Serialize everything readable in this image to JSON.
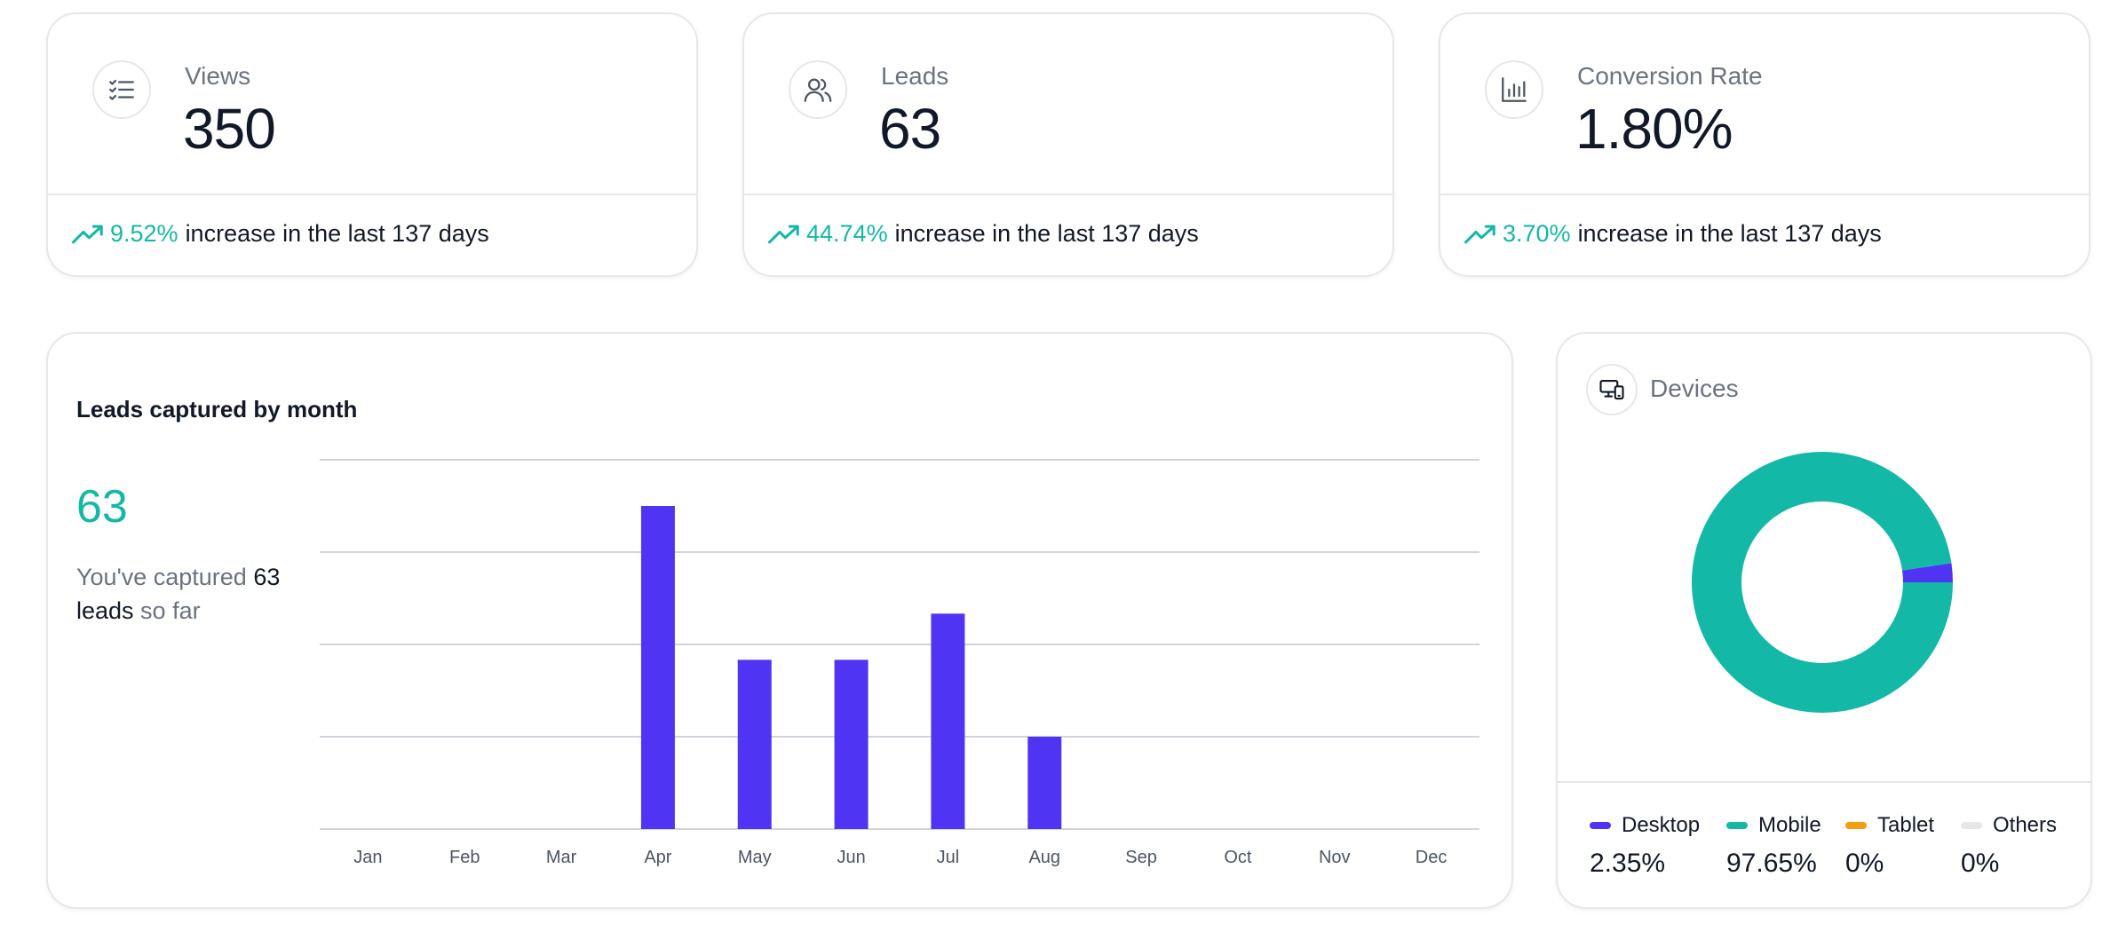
{
  "stats": [
    {
      "label": "Views",
      "value": "350",
      "change": "9.52%",
      "suffix": "increase in the last 137 days",
      "icon": "checklist-icon"
    },
    {
      "label": "Leads",
      "value": "63",
      "change": "44.74%",
      "suffix": "increase in the last 137 days",
      "icon": "users-icon"
    },
    {
      "label": "Conversion Rate",
      "value": "1.80%",
      "change": "3.70%",
      "suffix": "increase in the last 137 days",
      "icon": "bar-chart-icon"
    }
  ],
  "leads_card": {
    "title": "Leads captured by month",
    "total": "63",
    "desc_prefix": "You've captured ",
    "desc_count": "63",
    "desc_leads": " leads",
    "desc_suffix": " so far"
  },
  "devices": {
    "title": "Devices",
    "icon": "devices-icon",
    "items": [
      {
        "label": "Desktop",
        "value": "2.35%",
        "color": "#4f35f3"
      },
      {
        "label": "Mobile",
        "value": "97.65%",
        "color": "#14b8a6"
      },
      {
        "label": "Tablet",
        "value": "0%",
        "color": "#f59e0b"
      },
      {
        "label": "Others",
        "value": "0%",
        "color": "#e5e7eb"
      }
    ]
  },
  "colors": {
    "accent": "#14b8a6",
    "bar": "#4f35f3",
    "grid": "#d1d5db"
  },
  "chart_data": [
    {
      "type": "bar",
      "title": "Leads captured by month",
      "categories": [
        "Jan",
        "Feb",
        "Mar",
        "Apr",
        "May",
        "Jun",
        "Jul",
        "Aug",
        "Sep",
        "Oct",
        "Nov",
        "Dec"
      ],
      "values": [
        0,
        0,
        0,
        21,
        11,
        11,
        14,
        6,
        0,
        0,
        0,
        0
      ],
      "ylim": [
        0,
        24
      ],
      "grid": true,
      "xlabel": "",
      "ylabel": ""
    },
    {
      "type": "pie",
      "title": "Devices",
      "labels": [
        "Desktop",
        "Mobile",
        "Tablet",
        "Others"
      ],
      "values": [
        2.35,
        97.65,
        0,
        0
      ],
      "donut": true
    }
  ]
}
